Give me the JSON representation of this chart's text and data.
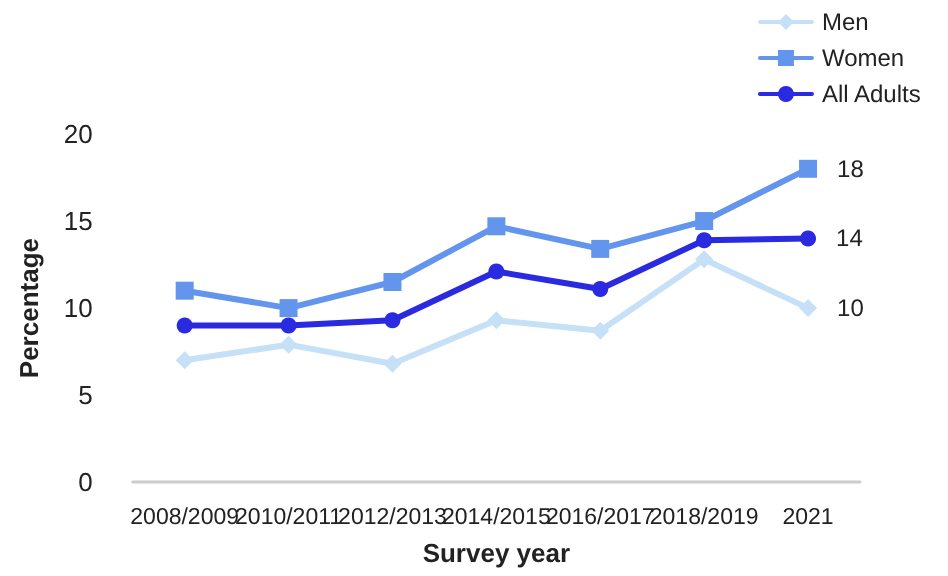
{
  "chart_data": {
    "type": "line",
    "xlabel": "Survey year",
    "ylabel": "Percentage",
    "categories": [
      "2008/2009",
      "2010/2011",
      "2012/2013",
      "2014/2015",
      "2016/2017",
      "2018/2019",
      "2021"
    ],
    "series": [
      {
        "name": "Men",
        "color": "#c6e0f8",
        "marker": "diamond",
        "values": [
          7,
          7.9,
          6.8,
          9.3,
          8.7,
          12.8,
          10
        ],
        "value_labels": [
          null,
          null,
          null,
          null,
          null,
          null,
          "10"
        ]
      },
      {
        "name": "Women",
        "color": "#6495ed",
        "marker": "square",
        "values": [
          11,
          10,
          11.5,
          14.7,
          13.4,
          15,
          18
        ],
        "value_labels": [
          null,
          null,
          null,
          null,
          null,
          null,
          "18"
        ]
      },
      {
        "name": "All Adults",
        "color": "#2a2ae0",
        "marker": "circle",
        "values": [
          9,
          9,
          9.3,
          12.1,
          11.1,
          13.9,
          14
        ],
        "value_labels": [
          null,
          null,
          null,
          null,
          null,
          null,
          "14"
        ]
      }
    ],
    "ylim": [
      0,
      20
    ],
    "yticks": [
      0,
      5,
      10,
      15,
      20
    ],
    "grid": false,
    "legend": "top right"
  }
}
